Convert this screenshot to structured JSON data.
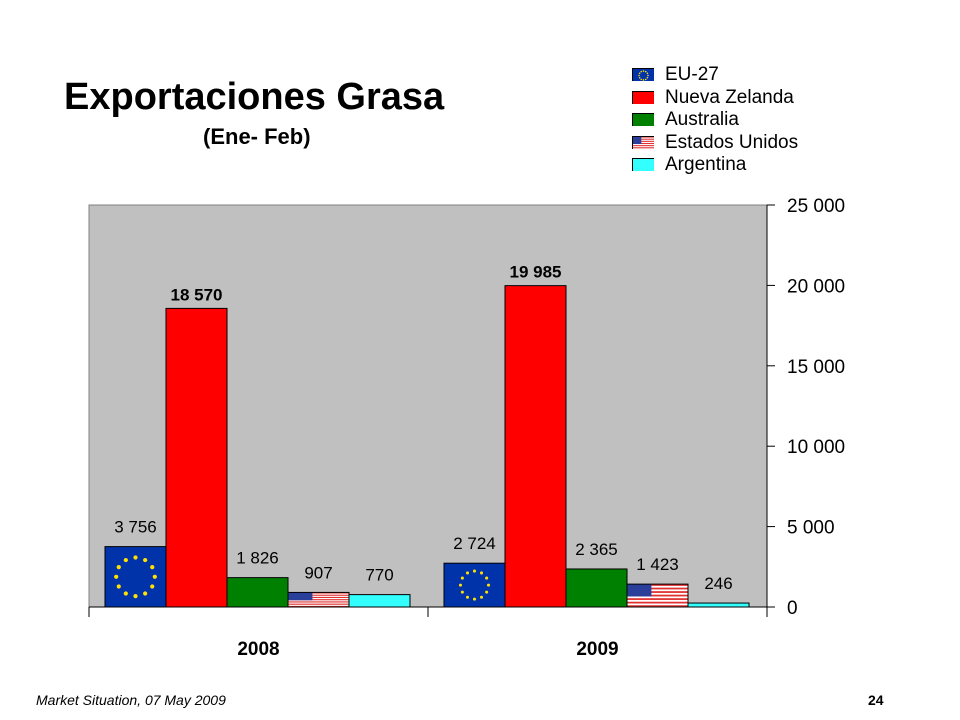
{
  "footer": {
    "left": "Market Situation, 07 May 2009",
    "page": "24"
  },
  "colors": {
    "plot_bg": "#C0C0C0",
    "eu": "#0033AA",
    "nz": "#FF0000",
    "au": "#008000",
    "us_red": "#E03030",
    "us_blue": "#2A3F9A",
    "ar": "#33FFFF",
    "eu_star": "#FFE000"
  },
  "chart_data": {
    "type": "bar",
    "title": "Exportaciones Grasa",
    "subtitle": "(Ene- Feb)",
    "categories": [
      "2008",
      "2009"
    ],
    "series": [
      {
        "name": "EU-27",
        "values": [
          3756,
          2724
        ],
        "labels": [
          "3 756",
          "2 724"
        ],
        "swatch": "eu",
        "color": "#0033AA",
        "bold": false
      },
      {
        "name": "Nueva Zelanda",
        "values": [
          18570,
          19985
        ],
        "labels": [
          "18 570",
          "19 985"
        ],
        "swatch": "nz",
        "color": "#FF0000",
        "bold": true
      },
      {
        "name": "Australia",
        "values": [
          1826,
          2365
        ],
        "labels": [
          "1 826",
          "2 365"
        ],
        "swatch": "au",
        "color": "#008000",
        "bold": false
      },
      {
        "name": "Estados Unidos",
        "values": [
          907,
          1423
        ],
        "labels": [
          "907",
          "1 423"
        ],
        "swatch": "us",
        "color": "#E03030",
        "bold": false
      },
      {
        "name": "Argentina",
        "values": [
          770,
          246
        ],
        "labels": [
          "770",
          "246"
        ],
        "swatch": "ar",
        "color": "#33FFFF",
        "bold": false
      }
    ],
    "ylim": [
      0,
      25000
    ],
    "yticks": [
      0,
      5000,
      10000,
      15000,
      20000,
      25000
    ],
    "ytick_labels": [
      "0",
      "5 000",
      "10 000",
      "15 000",
      "20 000",
      "25 000"
    ],
    "y_axis_side": "right",
    "legend_position": "top-right",
    "grid": false
  }
}
